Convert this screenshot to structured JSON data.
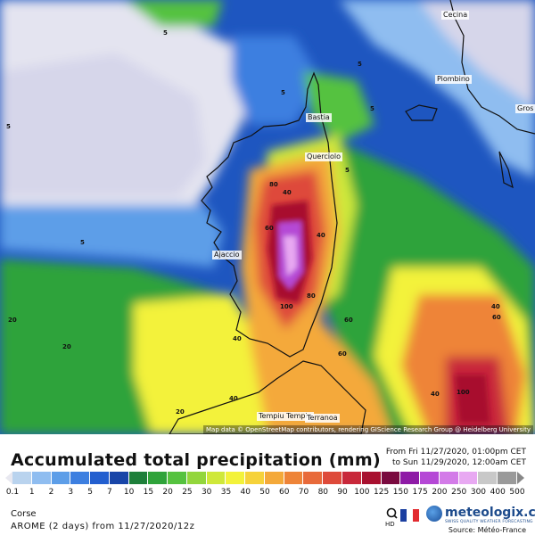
{
  "map": {
    "attribution": "Map data © OpenStreetMap contributors, rendering GIScience Research Group @ Heidelberg University",
    "cities": [
      "Cecina",
      "Piombino",
      "Gros",
      "Bastia",
      "Querciolo",
      "Ajaccio",
      "Tempiu Tempio",
      "Terranoa"
    ],
    "contour_labels": [
      "5",
      "5",
      "5",
      "5",
      "5",
      "5",
      "20",
      "20",
      "40",
      "40",
      "40",
      "40",
      "60",
      "60",
      "60",
      "80",
      "80",
      "100",
      "100",
      "20",
      "40",
      "60",
      "40",
      "5"
    ]
  },
  "legend": {
    "title": "Accumulated total precipitation (mm)",
    "period_from": "From Fri 11/27/2020, 01:00pm CET",
    "period_to": "to Sun 11/29/2020, 12:00am CET",
    "ticks": [
      "0.1",
      "1",
      "2",
      "3",
      "5",
      "7",
      "10",
      "15",
      "20",
      "25",
      "30",
      "35",
      "40",
      "50",
      "60",
      "70",
      "80",
      "90",
      "100",
      "125",
      "150",
      "175",
      "200",
      "250",
      "300",
      "400",
      "500"
    ],
    "colors": [
      "#e8e8f0",
      "#b9d3ee",
      "#8fbdf0",
      "#5d9ee8",
      "#3d7fe0",
      "#235fcf",
      "#1845a8",
      "#1e7f3a",
      "#2fa33a",
      "#55c23f",
      "#93d63c",
      "#cfe83a",
      "#f3f23a",
      "#f6d23a",
      "#f4a93a",
      "#ee8438",
      "#e86a3a",
      "#de4a3a",
      "#c8283a",
      "#a8102f",
      "#7a0a3f",
      "#8e1aa6",
      "#b548d6",
      "#d37be8",
      "#e8a9f2",
      "#c8c8c8",
      "#9a9a9a"
    ]
  },
  "region": "Corse",
  "model": "AROME (2 days) from 11/27/2020/12z",
  "brand": {
    "name": "meteologix.com",
    "tagline": "SWISS QUALITY WEATHER FORECASTING",
    "hd_label": "HD",
    "source": "Source: Météo-France",
    "flag_colors": [
      "#1b3fa0",
      "#ffffff",
      "#e22b30"
    ]
  }
}
